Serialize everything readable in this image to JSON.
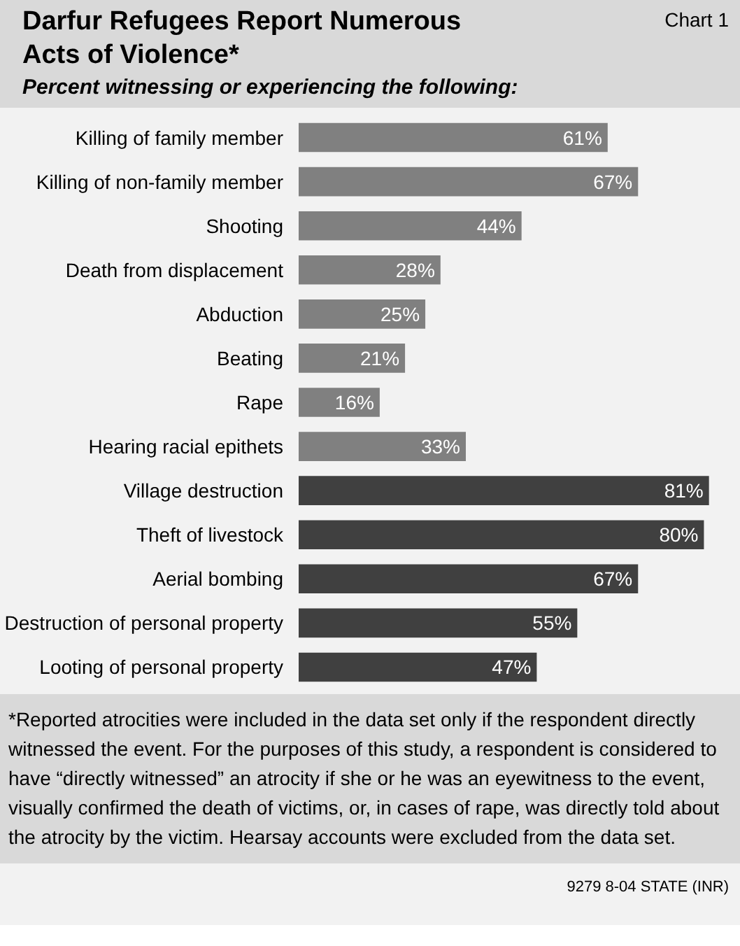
{
  "chart_data": {
    "type": "bar",
    "orientation": "horizontal",
    "title": "Darfur Refugees Report Numerous Acts of Violence*",
    "subtitle": "Percent witnessing or experiencing the following:",
    "categories": [
      "Killing of family member",
      "Killing of non-family member",
      "Shooting",
      "Death from displacement",
      "Abduction",
      "Beating",
      "Rape",
      "Hearing racial epithets",
      "Village destruction",
      "Theft of livestock",
      "Aerial bombing",
      "Destruction of personal property",
      "Looting of personal property"
    ],
    "values": [
      61,
      67,
      44,
      28,
      25,
      21,
      16,
      33,
      81,
      80,
      67,
      55,
      47
    ],
    "value_labels": [
      "61%",
      "67%",
      "44%",
      "28%",
      "25%",
      "21%",
      "16%",
      "33%",
      "81%",
      "80%",
      "67%",
      "55%",
      "47%"
    ],
    "colors": [
      "#808080",
      "#808080",
      "#808080",
      "#808080",
      "#808080",
      "#808080",
      "#808080",
      "#808080",
      "#404040",
      "#404040",
      "#404040",
      "#404040",
      "#404040"
    ],
    "annotations": [
      "Chart 1",
      "*Reported atrocities were included in the data set only if the respondent directly witnessed the event. For the purposes of this study, a respondent is considered to have “directly witnessed” an atrocity if she or he was an eyewitness to the event, visually confirmed the death of victims, or, in cases of rape, was directly told about the atrocity by the victim. Hearsay accounts were excluded from the data set.",
      "9279 8-04 STATE (INR)"
    ]
  }
}
